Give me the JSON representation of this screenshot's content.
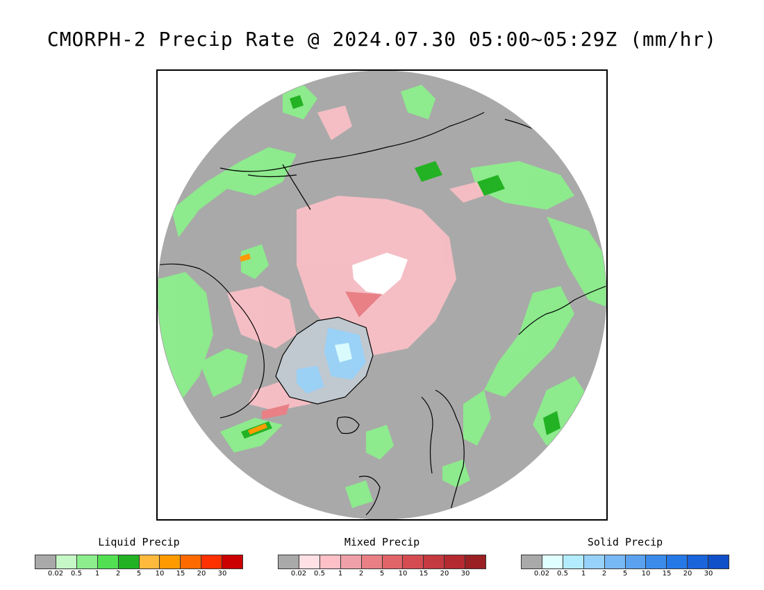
{
  "title": "CMORPH-2 Precip Rate @ 2024.07.30 05:00~05:29Z (mm/hr)",
  "map": {
    "projection": "north-polar-stereographic",
    "background_color": "#a9a9a9",
    "coastline_color": "#000000"
  },
  "legends": [
    {
      "title": "Liquid Precip",
      "colors": [
        "#a9a9a9",
        "#c6f7c6",
        "#8cee8c",
        "#52e052",
        "#23b223",
        "#ffb93c",
        "#ff9a00",
        "#ff6a00",
        "#ff3000",
        "#cc0000"
      ],
      "ticks": [
        "0.02",
        "0.5",
        "1",
        "2",
        "5",
        "10",
        "15",
        "20",
        "30"
      ]
    },
    {
      "title": "Mixed Precip",
      "colors": [
        "#a9a9a9",
        "#ffe0e4",
        "#fcc0c6",
        "#f0a0a8",
        "#e88086",
        "#e06468",
        "#d44c52",
        "#c43a40",
        "#b42a30",
        "#9a2024"
      ],
      "ticks": [
        "0.02",
        "0.5",
        "1",
        "2",
        "5",
        "10",
        "15",
        "20",
        "30"
      ]
    },
    {
      "title": "Solid Precip",
      "colors": [
        "#a9a9a9",
        "#e0ffff",
        "#b4ecff",
        "#96d2fa",
        "#78b8f5",
        "#5aa2f0",
        "#3c8ceb",
        "#2678e6",
        "#1a64dc",
        "#1050c8"
      ],
      "ticks": [
        "0.02",
        "0.5",
        "1",
        "2",
        "5",
        "10",
        "15",
        "20",
        "30"
      ]
    }
  ]
}
